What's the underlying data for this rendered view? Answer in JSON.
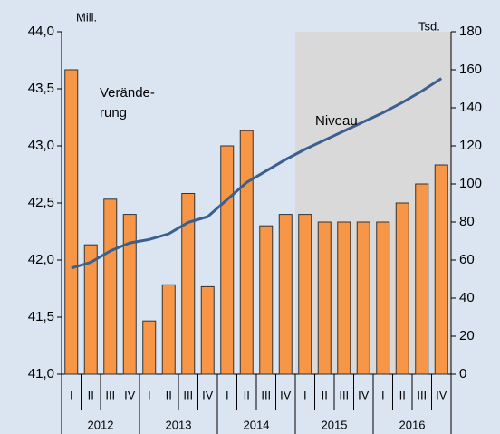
{
  "chart_data": {
    "type": "bar",
    "y_label": "Mill.",
    "y2_label": "Tsd.",
    "annotations": [
      {
        "lines": [
          "Verände-",
          "rung"
        ]
      },
      {
        "lines": [
          "Niveau"
        ]
      }
    ],
    "groups": [
      {
        "label": "2012",
        "categories": [
          "I",
          "II",
          "III",
          "IV"
        ]
      },
      {
        "label": "2013",
        "categories": [
          "I",
          "II",
          "III",
          "IV"
        ]
      },
      {
        "label": "2014",
        "categories": [
          "I",
          "II",
          "III",
          "IV"
        ]
      },
      {
        "label": "2015",
        "categories": [
          "I",
          "II",
          "III",
          "IV"
        ],
        "shaded": true
      },
      {
        "label": "2016",
        "categories": [
          "I",
          "II",
          "III",
          "IV"
        ],
        "shaded": true
      }
    ],
    "series": [
      {
        "type": "bar",
        "axis": "y2",
        "color": "#f79646",
        "values": [
          160,
          68,
          92,
          84,
          28,
          47,
          95,
          46,
          120,
          128,
          78,
          84,
          84,
          80,
          80,
          80,
          80,
          90,
          100,
          110
        ]
      },
      {
        "type": "line",
        "axis": "y",
        "color": "#3b5f8f",
        "values": [
          41.93,
          41.98,
          42.08,
          42.15,
          42.18,
          42.23,
          42.33,
          42.38,
          42.53,
          42.68,
          42.78,
          42.88,
          42.97,
          43.05,
          43.13,
          43.21,
          43.29,
          43.38,
          43.48,
          43.59
        ]
      }
    ],
    "ylim": [
      41,
      44
    ],
    "yticks": [
      {
        "value": 41,
        "label": "41,0"
      },
      {
        "value": 41.5,
        "label": "41,5"
      },
      {
        "value": 42,
        "label": "42,0"
      },
      {
        "value": 42.5,
        "label": "42,5"
      },
      {
        "value": 43,
        "label": "43,0"
      },
      {
        "value": 43.5,
        "label": "43,5"
      },
      {
        "value": 44,
        "label": "44,0"
      }
    ],
    "y2lim": [
      0,
      180
    ],
    "y2ticks": [
      0,
      20,
      40,
      60,
      80,
      100,
      120,
      140,
      160,
      180
    ],
    "shade_color": "#d9d9d9"
  }
}
